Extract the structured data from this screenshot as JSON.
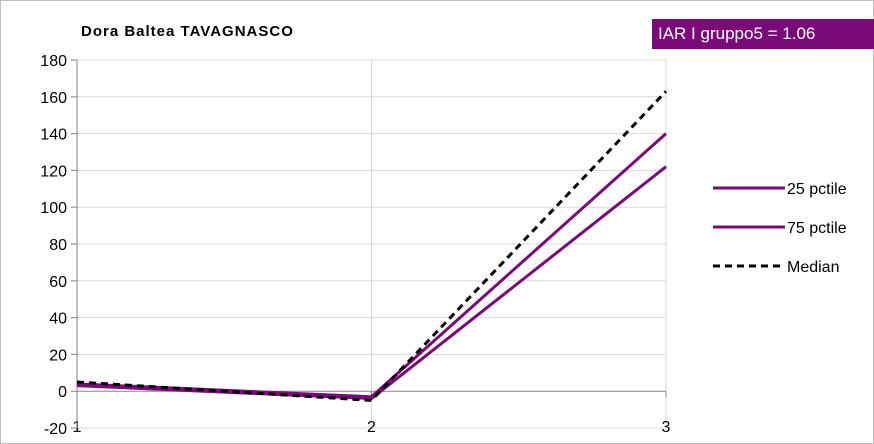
{
  "badge": {
    "text": "IAR I gruppo5 =   1.06",
    "color": "#7a0a7a"
  },
  "chart_data": {
    "type": "line",
    "title": "Dora Baltea TAVAGNASCO",
    "xlabel": "",
    "ylabel": "",
    "x": [
      1,
      2,
      3
    ],
    "xticks": [
      "1",
      "2",
      "3"
    ],
    "ylim": [
      -20,
      180
    ],
    "yticks": [
      -20,
      0,
      20,
      40,
      60,
      80,
      100,
      120,
      140,
      160,
      180
    ],
    "grid": true,
    "legend_position": "right",
    "series": [
      {
        "name": "25 pctile",
        "values": [
          3,
          -4,
          122
        ],
        "color": "#7a0a7a",
        "dash": "solid"
      },
      {
        "name": "75 pctile",
        "values": [
          4,
          -3,
          140
        ],
        "color": "#7a0a7a",
        "dash": "solid"
      },
      {
        "name": "Median",
        "values": [
          5,
          -5,
          163
        ],
        "color": "#000000",
        "dash": "dashed"
      }
    ]
  }
}
